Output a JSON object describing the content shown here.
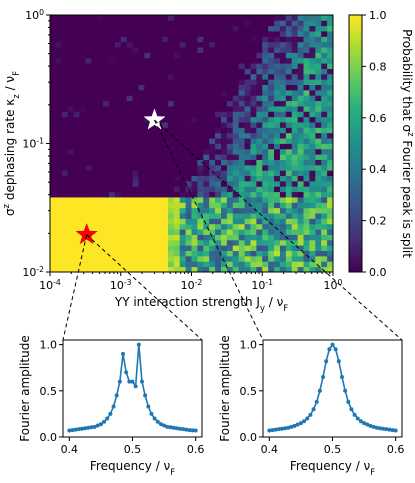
{
  "chart_data": [
    {
      "type": "heatmap",
      "xlabel": "YY interaction strength J_y / ν_F",
      "ylabel": "σ^z dephasing rate κ_z / ν_F",
      "x_scale": "log",
      "y_scale": "log",
      "xlim": [
        0.0001,
        1
      ],
      "ylim": [
        0.01,
        1
      ],
      "x_ticks": [
        "10^{-4}",
        "10^{-3}",
        "10^{-2}",
        "10^{-1}",
        "10^{0}"
      ],
      "y_ticks": [
        "10^{-2}",
        "10^{-1}",
        "10^{0}"
      ],
      "colorbar": {
        "label": "Probability that σ^z Fourier peak is split",
        "range": [
          0,
          1
        ],
        "ticks": [
          "0.0",
          "0.2",
          "0.4",
          "0.6",
          "0.8",
          "1.0"
        ],
        "colormap": "viridis"
      },
      "regions": [
        {
          "x_range": [
            0.0001,
            0.005
          ],
          "y_range": [
            0.01,
            0.04
          ],
          "value": 1.0
        },
        {
          "x_range": [
            0.005,
            1
          ],
          "y_range": [
            0.01,
            0.04
          ],
          "value": 0.6
        },
        {
          "x_range": [
            0.0001,
            0.005
          ],
          "y_range": [
            0.04,
            1
          ],
          "value": 0.0
        }
      ],
      "markers": [
        {
          "x": 0.00033,
          "y": 0.0195,
          "symbol": "star",
          "color": "#ff0000"
        },
        {
          "x": 0.003,
          "y": 0.152,
          "symbol": "star",
          "color": "#ffffff"
        }
      ]
    },
    {
      "type": "line",
      "xlabel": "Frequency / ν_F",
      "ylabel": "Fourier amplitude",
      "xlim": [
        0.39,
        0.61
      ],
      "ylim": [
        0,
        1.05
      ],
      "x_ticks": [
        "0.4",
        "0.5",
        "0.6"
      ],
      "y_ticks": [
        "0.0",
        "0.5",
        "1.0"
      ],
      "series": [
        {
          "x": [
            0.4,
            0.405,
            0.41,
            0.415,
            0.42,
            0.425,
            0.43,
            0.435,
            0.44,
            0.445,
            0.45,
            0.455,
            0.46,
            0.465,
            0.47,
            0.475,
            0.48,
            0.485,
            0.49,
            0.495,
            0.5,
            0.505,
            0.51,
            0.515,
            0.52,
            0.525,
            0.53,
            0.535,
            0.54,
            0.545,
            0.55,
            0.555,
            0.56,
            0.565,
            0.57,
            0.575,
            0.58,
            0.585,
            0.59,
            0.595,
            0.6
          ],
          "y": [
            0.07,
            0.075,
            0.08,
            0.085,
            0.09,
            0.095,
            0.1,
            0.105,
            0.11,
            0.125,
            0.14,
            0.165,
            0.2,
            0.25,
            0.33,
            0.45,
            0.6,
            0.9,
            0.7,
            0.6,
            0.6,
            0.55,
            1.0,
            0.6,
            0.45,
            0.33,
            0.25,
            0.2,
            0.165,
            0.14,
            0.125,
            0.11,
            0.105,
            0.1,
            0.095,
            0.09,
            0.085,
            0.08,
            0.075,
            0.072,
            0.07
          ],
          "color": "#1f77b4"
        }
      ]
    },
    {
      "type": "line",
      "xlabel": "Frequency / ν_F",
      "ylabel": "Fourier amplitude",
      "xlim": [
        0.39,
        0.61
      ],
      "ylim": [
        0,
        1.05
      ],
      "x_ticks": [
        "0.4",
        "0.5",
        "0.6"
      ],
      "y_ticks": [
        "0.0",
        "0.5",
        "1.0"
      ],
      "series": [
        {
          "x": [
            0.4,
            0.405,
            0.41,
            0.415,
            0.42,
            0.425,
            0.43,
            0.435,
            0.44,
            0.445,
            0.45,
            0.455,
            0.46,
            0.465,
            0.47,
            0.475,
            0.48,
            0.485,
            0.49,
            0.495,
            0.5,
            0.505,
            0.51,
            0.515,
            0.52,
            0.525,
            0.53,
            0.535,
            0.54,
            0.545,
            0.55,
            0.555,
            0.56,
            0.565,
            0.57,
            0.575,
            0.58,
            0.585,
            0.59,
            0.595,
            0.6
          ],
          "y": [
            0.07,
            0.075,
            0.08,
            0.085,
            0.09,
            0.095,
            0.1,
            0.11,
            0.12,
            0.135,
            0.15,
            0.17,
            0.2,
            0.24,
            0.3,
            0.38,
            0.5,
            0.65,
            0.82,
            0.95,
            1.0,
            0.95,
            0.82,
            0.65,
            0.5,
            0.38,
            0.3,
            0.24,
            0.2,
            0.17,
            0.15,
            0.135,
            0.12,
            0.11,
            0.1,
            0.095,
            0.09,
            0.085,
            0.08,
            0.075,
            0.07
          ],
          "color": "#1f77b4"
        }
      ]
    }
  ]
}
